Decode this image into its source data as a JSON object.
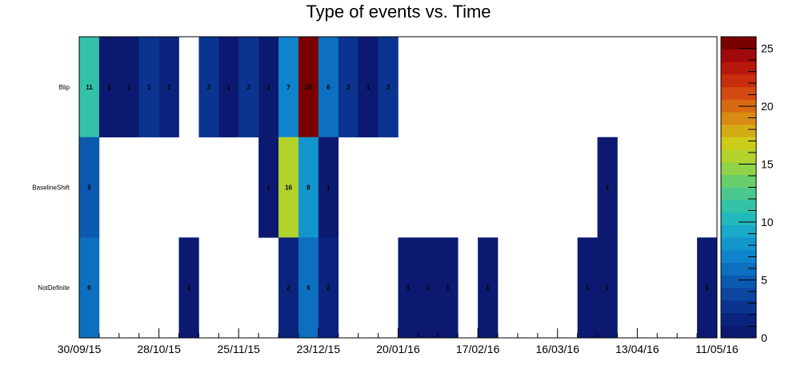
{
  "chart_data": {
    "type": "heatmap",
    "title": "Type of events vs. Time",
    "xlabel": "",
    "ylabel": "",
    "x_tick_labels": [
      "30/09/15",
      "28/10/15",
      "25/11/15",
      "23/12/15",
      "20/01/16",
      "17/02/16",
      "16/03/16",
      "13/04/16",
      "11/05/16"
    ],
    "bin_days": 7,
    "n_bins": 32,
    "rows": [
      {
        "name": "Blip",
        "cells": [
          [
            0,
            11
          ],
          [
            1,
            1
          ],
          [
            2,
            1
          ],
          [
            3,
            3
          ],
          [
            4,
            2
          ],
          [
            6,
            3
          ],
          [
            7,
            1
          ],
          [
            8,
            3
          ],
          [
            9,
            1
          ],
          [
            10,
            7
          ],
          [
            11,
            25
          ],
          [
            12,
            6
          ],
          [
            13,
            3
          ],
          [
            14,
            1
          ],
          [
            15,
            3
          ]
        ]
      },
      {
        "name": "BaselineShift",
        "cells": [
          [
            0,
            5
          ],
          [
            9,
            1
          ],
          [
            10,
            16
          ],
          [
            11,
            8
          ],
          [
            12,
            1
          ],
          [
            26,
            1
          ]
        ]
      },
      {
        "name": "NotDefinite",
        "cells": [
          [
            0,
            6
          ],
          [
            5,
            1
          ],
          [
            10,
            2
          ],
          [
            11,
            6
          ],
          [
            12,
            2
          ],
          [
            16,
            1
          ],
          [
            17,
            1
          ],
          [
            18,
            1
          ],
          [
            20,
            1
          ],
          [
            25,
            1
          ],
          [
            26,
            1
          ],
          [
            31,
            1
          ]
        ]
      }
    ],
    "z_range": [
      0,
      26
    ],
    "z_tick_labels": [
      "0",
      "5",
      "10",
      "15",
      "20",
      "25"
    ],
    "grid": false,
    "colormap": "rainbow"
  }
}
